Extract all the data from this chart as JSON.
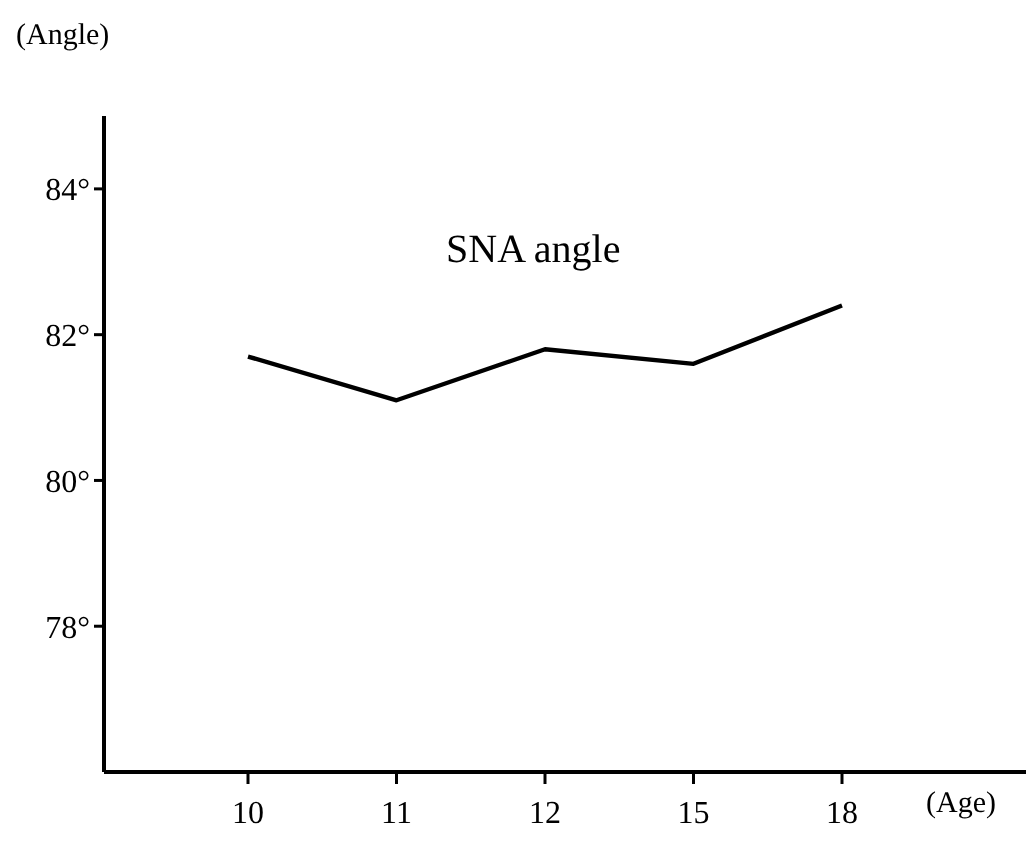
{
  "chart_data": {
    "type": "line",
    "ylabel": "(Angle)",
    "xlabel": "(Age)",
    "annotations": [
      "SNA angle"
    ],
    "categories": [
      "10",
      "11",
      "12",
      "15",
      "18"
    ],
    "series": [
      {
        "color": "#000000",
        "values": [
          81.7,
          81.1,
          81.8,
          81.6,
          82.4
        ]
      }
    ],
    "ylim": [
      76,
      85
    ],
    "yticks": [
      {
        "value": 78,
        "label": "78°"
      },
      {
        "value": 80,
        "label": "80°"
      },
      {
        "value": 82,
        "label": "82°"
      },
      {
        "value": 84,
        "label": "84°"
      }
    ],
    "marker": "none",
    "line_style": "solid"
  }
}
